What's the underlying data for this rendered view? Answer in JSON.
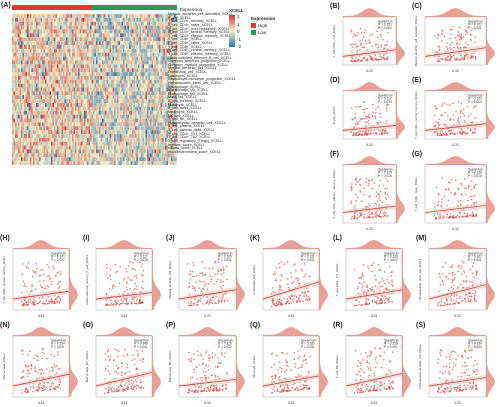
{
  "panel_labels": {
    "A": "(A)",
    "B": "(B)",
    "C": "(C)",
    "D": "(D)",
    "E": "(E)",
    "F": "(F)",
    "G": "(G)",
    "H": "(H)",
    "I": "(I)",
    "J": "(J)",
    "K": "(K)",
    "L": "(L)",
    "M": "(M)",
    "N": "(N)",
    "O": "(O)",
    "P": "(P)",
    "Q": "(Q)",
    "R": "(R)",
    "S": "(S)"
  },
  "heatmap": {
    "header_legend": "Expression",
    "colorbar_title": "XCELL",
    "colorbar_ticks": [
      "2",
      "1",
      "0",
      "-1",
      "-2"
    ],
    "expression_legend_title": "Expression",
    "expression_legend_items": [
      "High",
      "Low"
    ],
    "colors": {
      "high": "#e03b2f",
      "low": "#1f9e53",
      "pos": "#d4343a",
      "neg": "#2b6fb3",
      "mid": "#f7f3c8"
    },
    "rows": [
      "Myeloid_dendritic_cell_activated_XCELL",
      "B_cell_XCELL",
      "T_cell_CD4+_memory_XCELL",
      "T_cell_CD4+_naive_XCELL",
      "T_cell_CD4+_(non-regulatory)_XCELL",
      "T_cell_CD4+_central_memory_XCELL",
      "T_cell_CD4+_effector_memory_XCELL",
      "T_cell_CD8+_XCELL",
      "T_cell_CD8+_naive_XCELL",
      "T_cell_CD8+_XCELL",
      "T_cell_CD8+_central_memory_XCELL",
      "T_cell_CD8+_effector_memory_XCELL",
      "Class-switched_memory_B_cell_XCELL",
      "Common_lymphoid_progenitor_XCELL",
      "Common_myeloid_progenitor_XCELL",
      "Myeloid_dendritic_cell_XCELL",
      "Endothelial_cell_XCELL",
      "Eosinophil_XCELL",
      "Granulocyte-monocyte_progenitor_XCELL",
      "Hematopoietic_stem_cell_XCELL",
      "Macrophage_XCELL",
      "Macrophage_M1_XCELL",
      "Macrophage_M2_XCELL",
      "Mast_cell_XCELL",
      "B_cell_memory_XCELL",
      "Monocyte_XCELL",
      "B_cell_naive_XCELL",
      "Neutrophil_XCELL",
      "NK_cell_XCELL",
      "T_cell_NK_XCELL",
      "Plasmacytoid_dendritic_cell_XCELL",
      "B_cell_plasma_XCELL",
      "T_cell_gamma_delta_XCELL",
      "T_cell_CD4+_Th1_XCELL",
      "T_cell_CD4+_Th2_XCELL",
      "T_cell_regulatory_(Tregs)_XCELL",
      "immune_score_XCELL",
      "stroma_score_XCELL",
      "microenvironment_score_XCELL"
    ]
  },
  "chart_data": [
    {
      "panel": "B",
      "type": "scatter",
      "ylabel": "T_cell_CD4+_Th2_XCELL",
      "xlabel": "IL33",
      "legend": "Spearman",
      "r": "R = 0.151",
      "p": "P = 0.004"
    },
    {
      "panel": "C",
      "type": "scatter",
      "ylabel": "Myeloid_dendritic_cell_activated_XCELL",
      "xlabel": "IL33",
      "legend": "Spearman",
      "r": "R = 0.201",
      "p": "P < 0.001"
    },
    {
      "panel": "D",
      "type": "scatter",
      "ylabel": "B_cell_XCELL",
      "xlabel": "IL33",
      "legend": "Spearman",
      "r": "R = 0.112",
      "p": "P = 0.034"
    },
    {
      "panel": "E",
      "type": "scatter",
      "ylabel": "T_cell_CD4+_central_memory_XCELL",
      "xlabel": "IL33",
      "legend": "Spearman",
      "r": "R = 0.153",
      "p": "P = 0.004"
    },
    {
      "panel": "F",
      "type": "scatter",
      "ylabel": "T_cell_CD4+_effector_memory_XCELL",
      "xlabel": "IL33",
      "legend": "Spearman",
      "r": "R = 0.125",
      "p": "P = 0.018"
    },
    {
      "panel": "G",
      "type": "scatter",
      "ylabel": "T_cell_CD8+_naive_XCELL",
      "xlabel": "IL33",
      "legend": "Spearman",
      "r": "R = 0.136",
      "p": "P = 0.010"
    },
    {
      "panel": "H",
      "type": "scatter",
      "ylabel": "T_cell_CD8+_central_memory_XCELL",
      "xlabel": "IL33",
      "legend": "Spearman",
      "r": "R = 0.141",
      "p": "P = 0.007"
    },
    {
      "panel": "I",
      "type": "scatter",
      "ylabel": "Class-switched_memory_B_cell_XCELL",
      "xlabel": "IL33",
      "legend": "Spearman",
      "r": "R = 0.117",
      "p": "P = 0.026"
    },
    {
      "panel": "J",
      "type": "scatter",
      "ylabel": "Myeloid_dendritic_cell_XCELL",
      "xlabel": "IL33",
      "legend": "Spearman",
      "r": "R = 0.169",
      "p": "P = 0.001"
    },
    {
      "panel": "K",
      "type": "scatter",
      "ylabel": "Endothelial_cell_XCELL",
      "xlabel": "IL33",
      "legend": "Spearman",
      "r": "R = 0.311",
      "p": "P < 0.001"
    },
    {
      "panel": "L",
      "type": "scatter",
      "ylabel": "T_cell_CD4+_Th1_XCELL",
      "xlabel": "IL33",
      "legend": "Spearman",
      "r": "R = 0.166",
      "p": "P = 0.002"
    },
    {
      "panel": "M",
      "type": "scatter",
      "ylabel": "Hematopoietic_stem_cell_XCELL",
      "xlabel": "IL33",
      "legend": "Spearman",
      "r": "R = 0.261",
      "p": "P < 0.001"
    },
    {
      "panel": "N",
      "type": "scatter",
      "ylabel": "Macrophage_XCELL",
      "xlabel": "IL33",
      "legend": "Spearman",
      "r": "R = 0.214",
      "p": "P < 0.001"
    },
    {
      "panel": "O",
      "type": "scatter",
      "ylabel": "Macrophage_M1_XCELL",
      "xlabel": "IL33",
      "legend": "Spearman",
      "r": "R = 0.248",
      "p": "P < 0.001"
    },
    {
      "panel": "P",
      "type": "scatter",
      "ylabel": "Macrophage_M2_XCELL",
      "xlabel": "IL33",
      "legend": "Spearman",
      "r": "R = 0.120",
      "p": "P = 0.022"
    },
    {
      "panel": "Q",
      "type": "scatter",
      "ylabel": "Monocyte_XCELL",
      "xlabel": "IL33",
      "legend": "Spearman",
      "r": "R = 0.185",
      "p": "P < 0.001"
    },
    {
      "panel": "R",
      "type": "scatter",
      "ylabel": "T_cell_NK_XCELL",
      "xlabel": "IL33",
      "legend": "Spearman",
      "r": "R = 0.228",
      "p": "P < 0.001"
    },
    {
      "panel": "S",
      "type": "scatter",
      "ylabel": "Plasmacytoid_dendritic_cell_XCELL",
      "xlabel": "IL33",
      "legend": "Spearman",
      "r": "R = 0.154",
      "p": "P = 0.003"
    }
  ]
}
